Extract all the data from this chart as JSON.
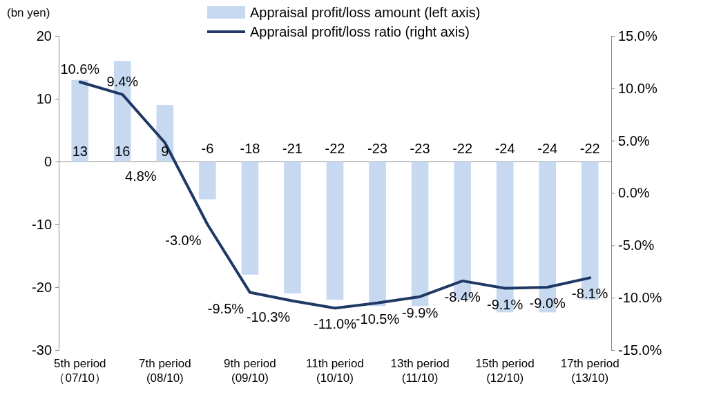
{
  "chart_data": {
    "type": "bar",
    "ylabel": "(bn yen)",
    "categories": [
      "5th period\n（07/10）",
      null,
      "7th period\n(08/10)",
      null,
      "9th period\n(09/10)",
      null,
      "11th period\n(10/10)",
      null,
      "13th period\n(11/10)",
      null,
      "15th period\n(12/10)",
      null,
      "17th period\n(13/10)"
    ],
    "series": [
      {
        "name": "Appraisal profit/loss amount (left axis)",
        "color": "#c6d9f1",
        "values": [
          13,
          16,
          9,
          -6,
          -18,
          -21,
          -22,
          -23,
          -23,
          -22,
          -24,
          -24,
          -22
        ]
      },
      {
        "name": "Appraisal profit/loss ratio (right axis)",
        "type": "line",
        "axis": "y2",
        "color": "#1f3864",
        "values": [
          10.6,
          9.4,
          4.8,
          -3.0,
          -9.5,
          -10.3,
          -11.0,
          -10.5,
          -9.9,
          -8.4,
          -9.1,
          -9.0,
          -8.1
        ],
        "value_labels": [
          "10.6%",
          "9.4%",
          "4.8%",
          "-3.0%",
          "-9.5%",
          "-10.3%",
          "-11.0%",
          "-10.5%",
          "-9.9%",
          "-8.4%",
          "-9.1%",
          "-9.0%",
          "-8.1%"
        ]
      }
    ],
    "ylim": [
      -30,
      20
    ],
    "yticks": [
      -30,
      -20,
      -10,
      0,
      10,
      20
    ],
    "y2lim": [
      -15,
      15
    ],
    "y2ticks": [
      {
        "value": -15,
        "label": "-15.0%"
      },
      {
        "value": -10,
        "label": "-10.0%"
      },
      {
        "value": -5,
        "label": "-5.0%"
      },
      {
        "value": 0,
        "label": "0.0%"
      },
      {
        "value": 5,
        "label": "5.0%"
      },
      {
        "value": 10,
        "label": "10.0%"
      },
      {
        "value": 15,
        "label": "15.0%"
      }
    ],
    "data_labels": true,
    "legend": "top",
    "marker": "none",
    "line_style": "solid"
  }
}
